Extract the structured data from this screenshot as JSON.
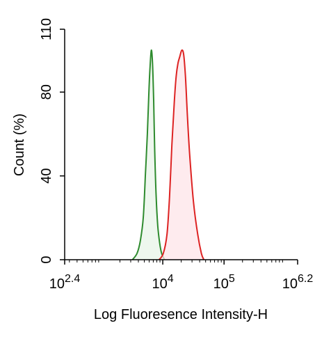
{
  "chart_data": {
    "type": "area",
    "xlabel": "Log Fluoresence Intensity-H",
    "ylabel": "Count (%)",
    "x_scale": "log",
    "xlim": [
      251,
      1585000
    ],
    "ylim": [
      0,
      110
    ],
    "x_ticks": [
      {
        "value": 251,
        "base": "10",
        "exp": "2.4"
      },
      {
        "value": 10000,
        "base": "10",
        "exp": "4"
      },
      {
        "value": 100000,
        "base": "10",
        "exp": "5"
      },
      {
        "value": 1585000,
        "base": "10",
        "exp": "6.2"
      }
    ],
    "y_ticks": [
      0,
      40,
      80,
      110
    ],
    "grid": false,
    "legend": "none",
    "series": [
      {
        "color": "#2e8b2e",
        "fill": "#e8f4e8",
        "x": [
          3200,
          3800,
          4300,
          4800,
          5200,
          5600,
          5900,
          6200,
          6500,
          6800,
          7100,
          7400,
          7800,
          8300,
          8900,
          9600,
          10700
        ],
        "y": [
          0,
          3,
          9,
          20,
          40,
          60,
          78,
          92,
          100,
          94,
          76,
          52,
          30,
          16,
          8,
          3,
          0
        ]
      },
      {
        "color": "#dd2222",
        "fill": "#fde4e8",
        "x": [
          8700,
          10200,
          11700,
          12900,
          14100,
          15400,
          16600,
          17800,
          19000,
          20400,
          21900,
          23400,
          25100,
          27500,
          31600,
          37200,
          42700,
          46800
        ],
        "y": [
          0,
          3,
          12,
          30,
          55,
          75,
          88,
          94,
          97,
          100,
          98,
          88,
          70,
          50,
          28,
          12,
          3,
          0
        ]
      }
    ]
  }
}
